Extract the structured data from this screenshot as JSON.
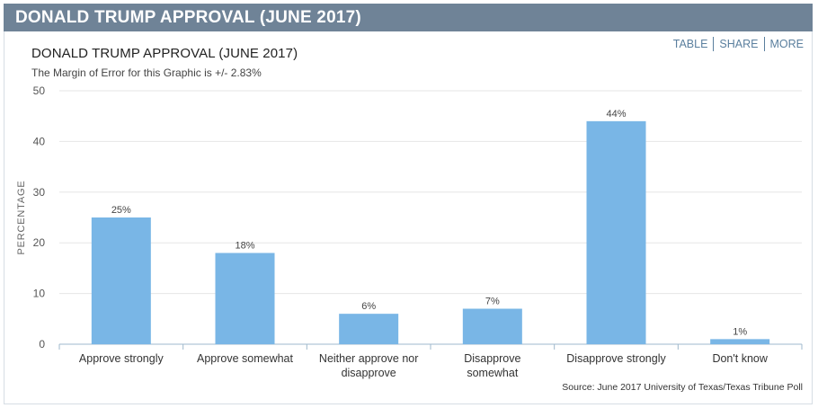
{
  "banner": {
    "title": "DONALD TRUMP APPROVAL (JUNE 2017)"
  },
  "links": {
    "table": "TABLE",
    "share": "SHARE",
    "more": "MORE"
  },
  "source": "Source: June 2017 University of Texas/Texas Tribune Poll",
  "colors": {
    "bar": "#79b6e6",
    "banner": "#6f8397",
    "link": "#5a7f9e"
  },
  "chart_data": {
    "type": "bar",
    "title": "DONALD TRUMP APPROVAL (JUNE 2017)",
    "subtitle": "The Margin of Error for this Graphic is +/- 2.83%",
    "ylabel": "PERCENTAGE",
    "xlabel": "",
    "ylim": [
      0,
      50
    ],
    "yticks": [
      0,
      10,
      20,
      30,
      40,
      50
    ],
    "grid": true,
    "categories": [
      [
        "Approve strongly"
      ],
      [
        "Approve somewhat"
      ],
      [
        "Neither approve nor",
        "disapprove"
      ],
      [
        "Disapprove",
        "somewhat"
      ],
      [
        "Disapprove strongly"
      ],
      [
        "Don't know"
      ]
    ],
    "values": [
      25,
      18,
      6,
      7,
      44,
      1
    ],
    "data_labels": [
      "25%",
      "18%",
      "6%",
      "7%",
      "44%",
      "1%"
    ]
  }
}
